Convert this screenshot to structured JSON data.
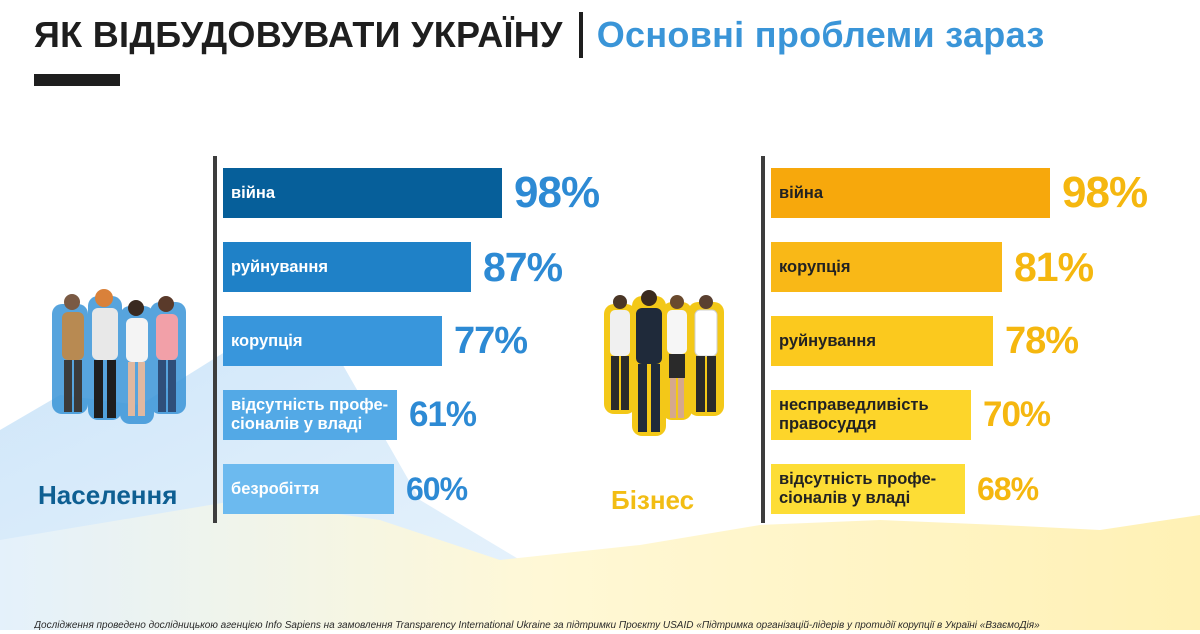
{
  "header": {
    "title": "ЯК ВІДБУДОВУВАТИ УКРАЇНУ",
    "subtitle": "Основні проблеми зараз"
  },
  "chart_data": [
    {
      "type": "bar",
      "orientation": "horizontal",
      "group": "Населення",
      "categories": [
        "війна",
        "руйнування",
        "корупція",
        "відсутність профе-сіоналів у владі",
        "безробіття"
      ],
      "values": [
        98,
        87,
        77,
        61,
        60
      ],
      "value_labels": [
        "98%",
        "87%",
        "77%",
        "61%",
        "60%"
      ],
      "xlim": [
        0,
        100
      ],
      "grid": false,
      "colors": [
        "#065f9a",
        "#1f81c7",
        "#3896dc",
        "#53a9e6",
        "#6cbaef"
      ],
      "label_color": "#2d8ad4"
    },
    {
      "type": "bar",
      "orientation": "horizontal",
      "group": "Бізнес",
      "categories": [
        "війна",
        "корупція",
        "руйнування",
        "несправедливість правосуддя",
        "відсутність профе-сіоналів у владі"
      ],
      "values": [
        98,
        81,
        78,
        70,
        68
      ],
      "value_labels": [
        "98%",
        "81%",
        "78%",
        "70%",
        "68%"
      ],
      "xlim": [
        0,
        100
      ],
      "grid": false,
      "colors": [
        "#f7a80c",
        "#f9b817",
        "#fbc91e",
        "#fdd52a",
        "#fddd35"
      ],
      "label_color": "#f5b70f"
    }
  ],
  "colors": {
    "title_dark": "#1e1e1e",
    "title_blue": "#3a95d8",
    "population_group": "#0e5f92",
    "business_group": "#f2bd14",
    "bar_text_population": "#ffffff",
    "bar_text_business": "#222222",
    "background_blue": "#cfe6f8",
    "background_yellow": "#fff3bf"
  },
  "icons": {
    "population_people": "group-of-four-people-icon",
    "business_people": "group-of-four-business-people-icon"
  },
  "footnote": "Дослідження проведено дослідницькою агенцією Info Sapiens на замовлення Transparency International Ukraine за підтримки Проєкту USAID «Підтримка організацій-лідерів у протидії корупції в Україні «ВзаємоДія»"
}
